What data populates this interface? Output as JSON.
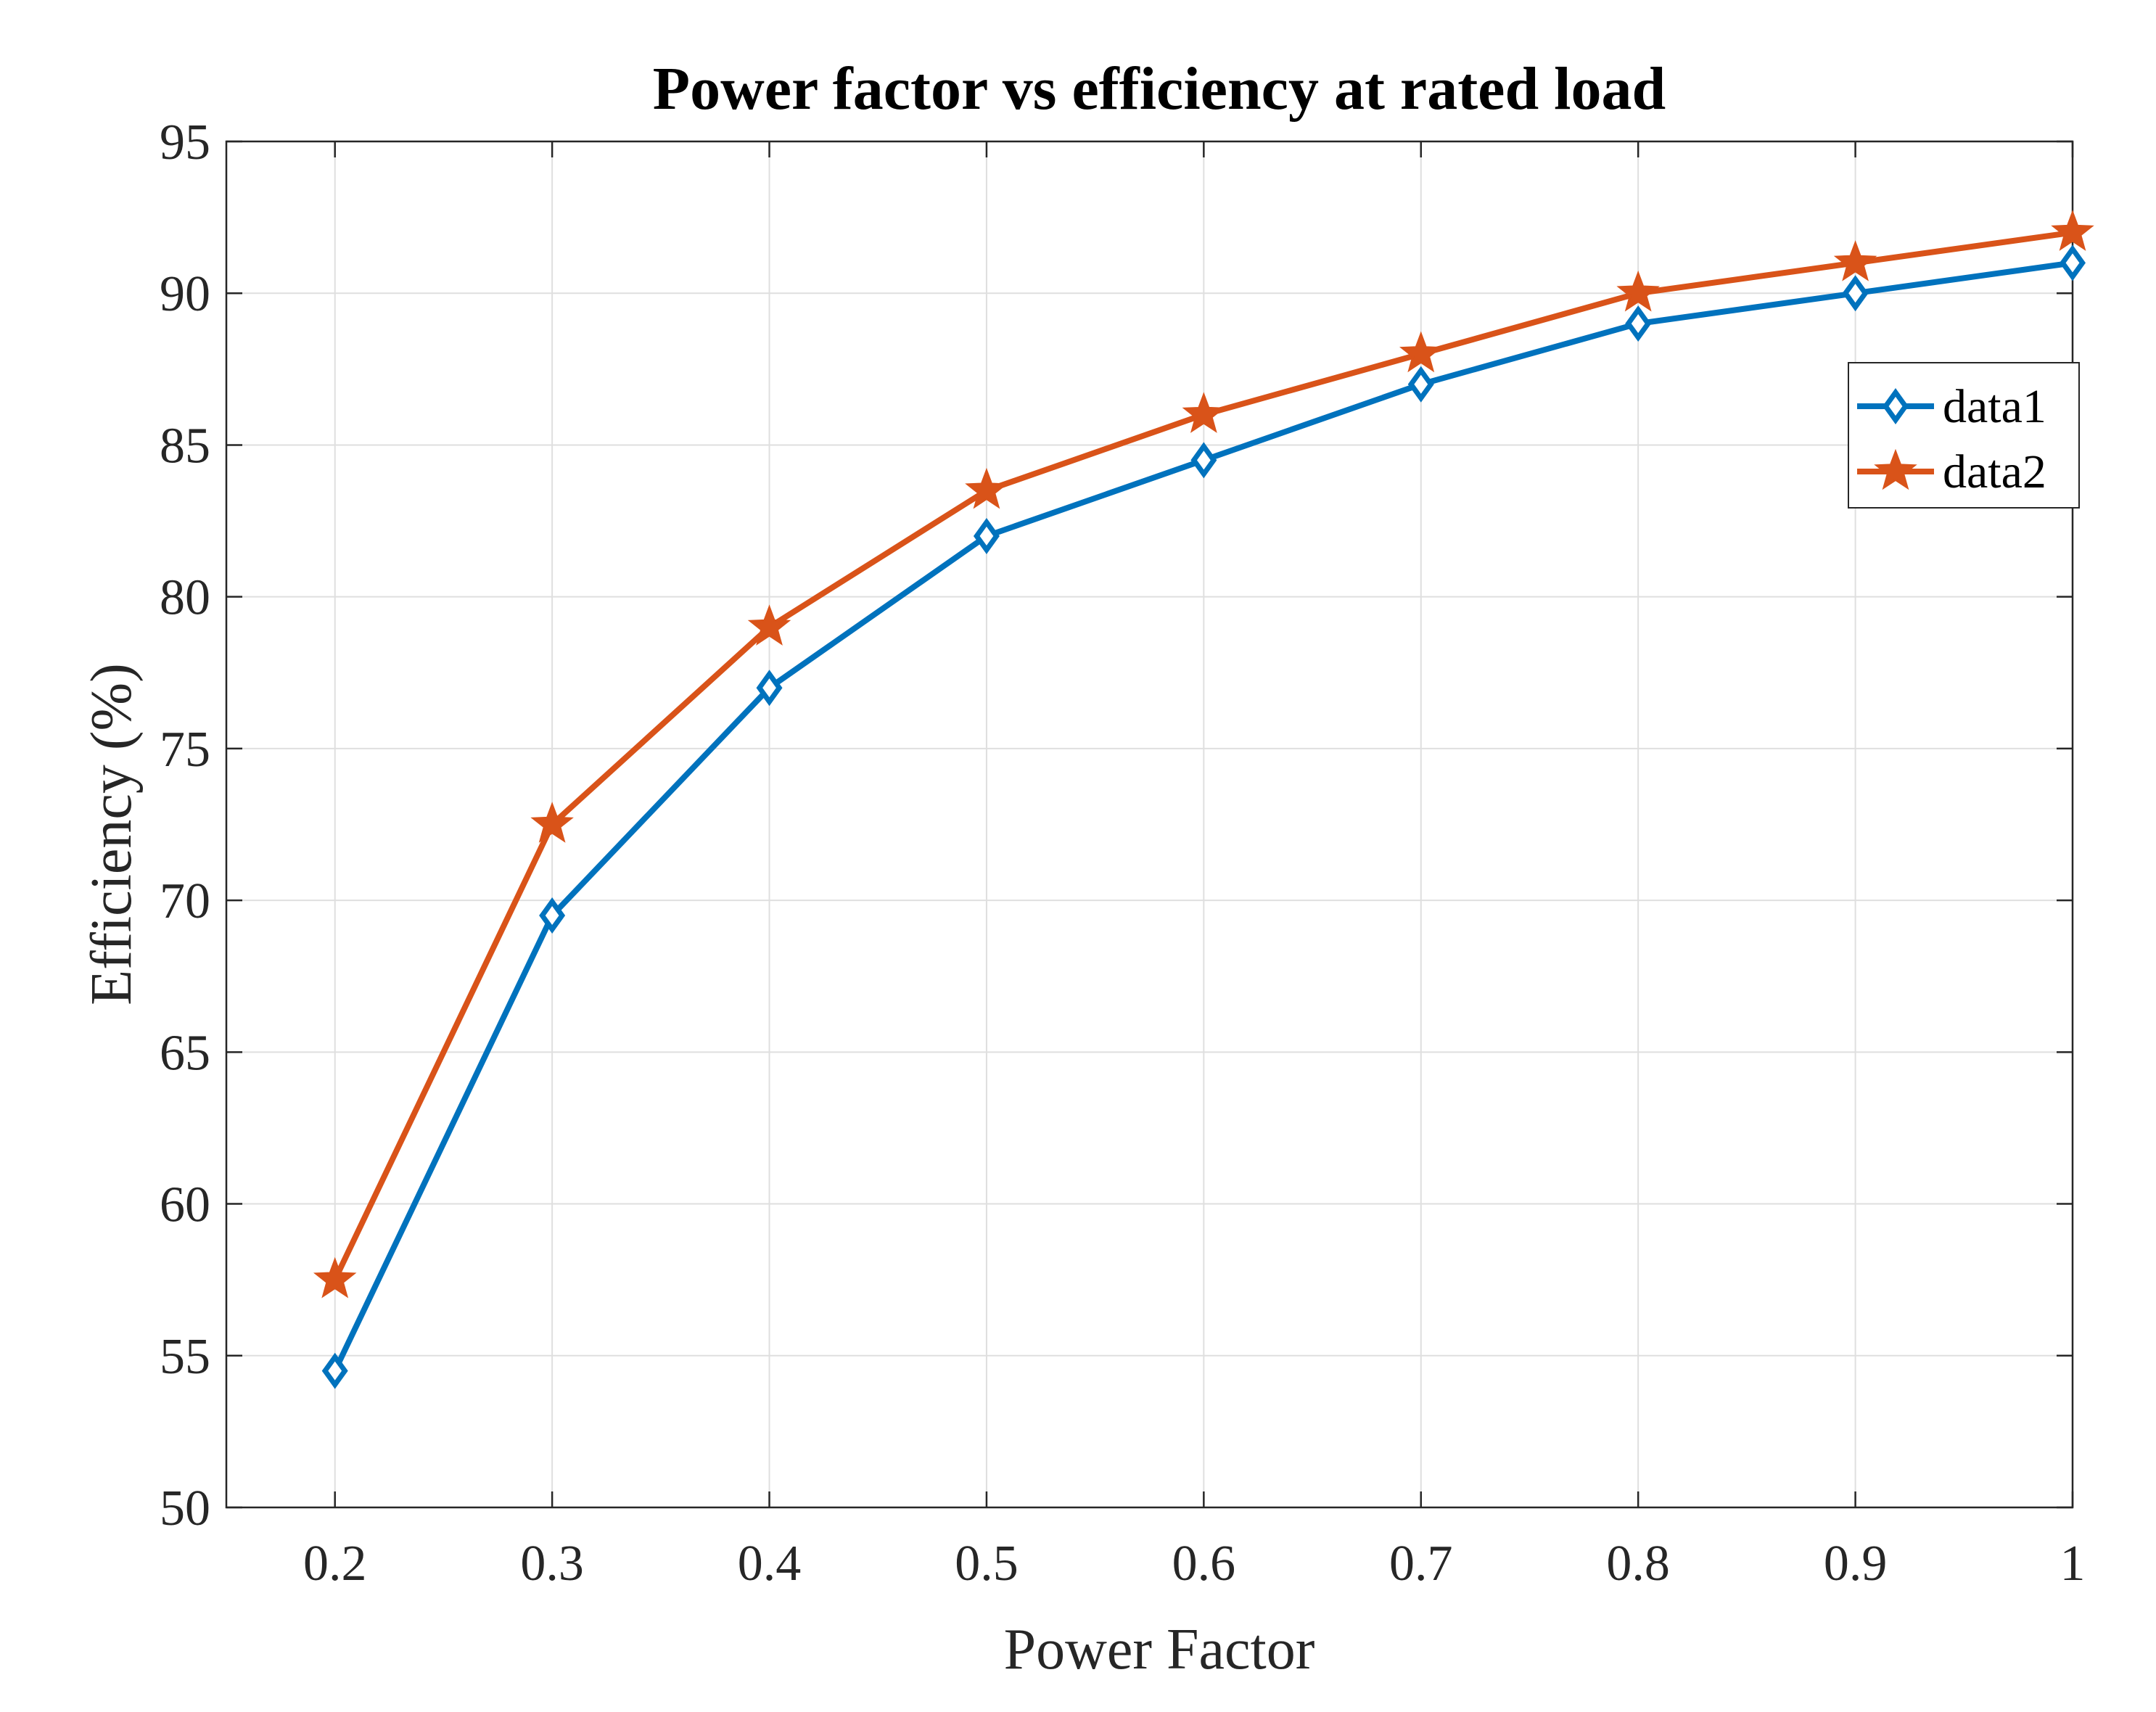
{
  "chart_data": {
    "type": "line",
    "title": "Power factor vs efficiency at rated load",
    "xlabel": "Power Factor",
    "ylabel": "Efficiency (%)",
    "xlim": [
      0.15,
      1.0
    ],
    "ylim": [
      50,
      95
    ],
    "x_ticks": [
      0.2,
      0.3,
      0.4,
      0.5,
      0.6,
      0.7,
      0.8,
      0.9,
      1.0
    ],
    "x_tick_labels": [
      "0.2",
      "0.3",
      "0.4",
      "0.5",
      "0.6",
      "0.7",
      "0.8",
      "0.9",
      "1"
    ],
    "y_ticks": [
      50,
      55,
      60,
      65,
      70,
      75,
      80,
      85,
      90,
      95
    ],
    "y_tick_labels": [
      "50",
      "55",
      "60",
      "65",
      "70",
      "75",
      "80",
      "85",
      "90",
      "95"
    ],
    "grid": true,
    "legend_position": "top-right",
    "x": [
      0.2,
      0.3,
      0.4,
      0.5,
      0.6,
      0.7,
      0.8,
      0.9,
      1.0
    ],
    "series": [
      {
        "name": "data1",
        "marker": "diamond",
        "color": "#0072BD",
        "values": [
          54.5,
          69.5,
          77.0,
          82.0,
          84.5,
          87.0,
          89.0,
          90.0,
          91.0
        ]
      },
      {
        "name": "data2",
        "marker": "star",
        "color": "#D95319",
        "values": [
          57.5,
          72.5,
          79.0,
          83.5,
          86.0,
          88.0,
          90.0,
          91.0,
          92.0
        ]
      }
    ]
  }
}
